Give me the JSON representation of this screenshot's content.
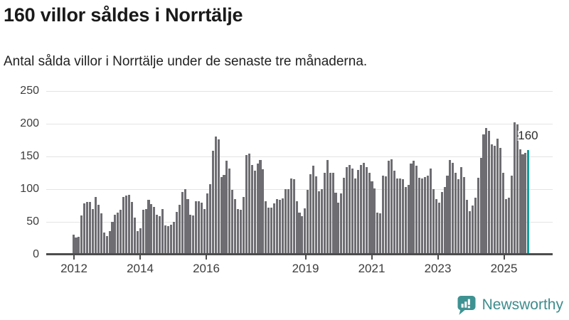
{
  "header": {
    "title": "160 villor såldes i Norrtälje",
    "subtitle": "Antal sålda villor i Norrtälje under de senaste tre månaderna."
  },
  "chart_data": {
    "type": "bar",
    "title": "160 villor såldes i Norrtälje",
    "xlabel": "",
    "ylabel": "",
    "frequency": "monthly",
    "x_start": "2012-01",
    "x_end": "2025-08",
    "ylim": [
      0,
      250
    ],
    "yticks": [
      0,
      50,
      100,
      150,
      200,
      250
    ],
    "xticks": [
      2012,
      2014,
      2016,
      2019,
      2021,
      2023,
      2025
    ],
    "grid": true,
    "bar_color": "#6d6d72",
    "values": [
      30,
      26,
      27,
      60,
      78,
      80,
      80,
      70,
      88,
      76,
      63,
      34,
      28,
      36,
      50,
      61,
      64,
      68,
      88,
      90,
      91,
      80,
      56,
      36,
      40,
      68,
      70,
      84,
      77,
      73,
      61,
      59,
      70,
      45,
      43,
      46,
      50,
      65,
      76,
      96,
      100,
      85,
      61,
      60,
      81,
      81,
      79,
      70,
      93,
      108,
      159,
      180,
      176,
      118,
      122,
      143,
      131,
      99,
      85,
      70,
      68,
      88,
      152,
      154,
      137,
      128,
      139,
      145,
      130,
      81,
      72,
      72,
      78,
      85,
      84,
      86,
      100,
      100,
      116,
      115,
      82,
      64,
      59,
      71,
      99,
      123,
      136,
      120,
      97,
      100,
      125,
      145,
      125,
      125,
      95,
      79,
      93,
      117,
      134,
      137,
      132,
      116,
      129,
      137,
      140,
      134,
      125,
      112,
      101,
      64,
      63,
      121,
      120,
      143,
      146,
      128,
      116,
      116,
      115,
      103,
      106,
      139,
      143,
      136,
      117,
      116,
      118,
      121,
      131,
      100,
      85,
      79,
      96,
      103,
      121,
      145,
      140,
      125,
      115,
      134,
      118,
      84,
      66,
      75,
      87,
      117,
      148,
      184,
      193,
      189,
      168,
      166,
      177,
      163,
      125,
      85,
      87,
      121,
      202,
      199,
      161,
      153,
      155,
      160
    ],
    "highlight": {
      "position": "last",
      "value": 160,
      "label": "160",
      "color": "#119e9e"
    }
  },
  "footer": {
    "brand": "Newsworthy",
    "brand_color": "#3e8c8c",
    "icon": "newsworthy-logo-icon",
    "icon_color": "#3f9292"
  },
  "colors": {
    "background": "#ffffff",
    "gridline": "#e4e4e4",
    "axis_line": "#4d4d4d",
    "tick_label": "#3d3d3d",
    "title_text": "#1a1a1a"
  }
}
